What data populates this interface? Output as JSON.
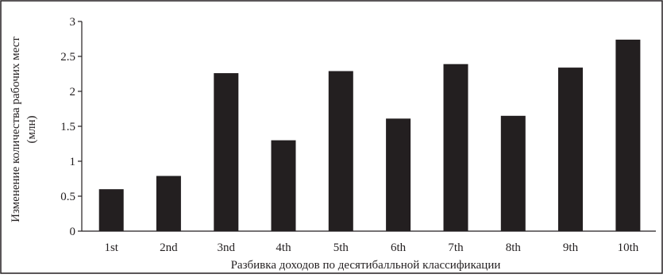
{
  "chart_data": {
    "type": "bar",
    "categories": [
      "1st",
      "2nd",
      "3nd",
      "4th",
      "5th",
      "6th",
      "7th",
      "8th",
      "9th",
      "10th"
    ],
    "values": [
      0.6,
      0.79,
      2.26,
      1.3,
      2.29,
      1.61,
      2.39,
      1.65,
      2.34,
      2.74
    ],
    "xlabel": "Разбивка доходов по десятибалльной классификации",
    "ylabel_line1": "Изменение количества рабочих мест",
    "ylabel_line2": "(млн)",
    "ylim": [
      0,
      3
    ],
    "yticks": [
      "0",
      "0.5",
      "1",
      "1.5",
      "2",
      "2.5",
      "3"
    ],
    "grid": false,
    "legend": "none",
    "bar_color": "#231f20",
    "axis_color": "#231f20"
  }
}
